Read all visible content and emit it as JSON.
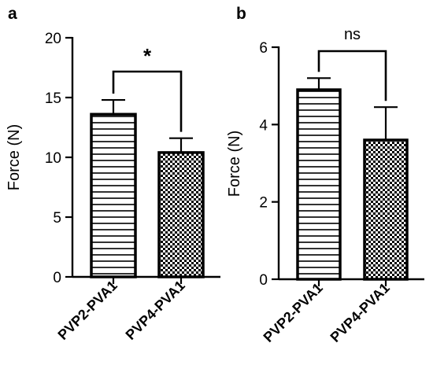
{
  "chart_data": [
    {
      "panel": "a",
      "type": "bar",
      "categories": [
        "PVP2-PVA1",
        "PVP4-PVA1"
      ],
      "values": [
        13.6,
        10.4
      ],
      "errors": [
        1.2,
        1.2
      ],
      "patterns": [
        "horizontal-lines",
        "checkerboard"
      ],
      "ylabel": "Force (N)",
      "xlabel": "",
      "ylim": [
        0,
        20
      ],
      "yticks": [
        0,
        5,
        10,
        15,
        20
      ],
      "significance": "*"
    },
    {
      "panel": "b",
      "type": "bar",
      "categories": [
        "PVP2-PVA1",
        "PVP4-PVA1"
      ],
      "values": [
        4.9,
        3.6
      ],
      "errors": [
        0.3,
        0.85
      ],
      "patterns": [
        "horizontal-lines",
        "checkerboard"
      ],
      "ylabel": "Force (N)",
      "xlabel": "",
      "ylim": [
        0,
        6
      ],
      "yticks": [
        0,
        2,
        4,
        6
      ],
      "significance": "ns"
    }
  ],
  "colors": {
    "bar_stroke": "#000000",
    "bar_fill": "#ffffff",
    "pattern": "#000000"
  }
}
